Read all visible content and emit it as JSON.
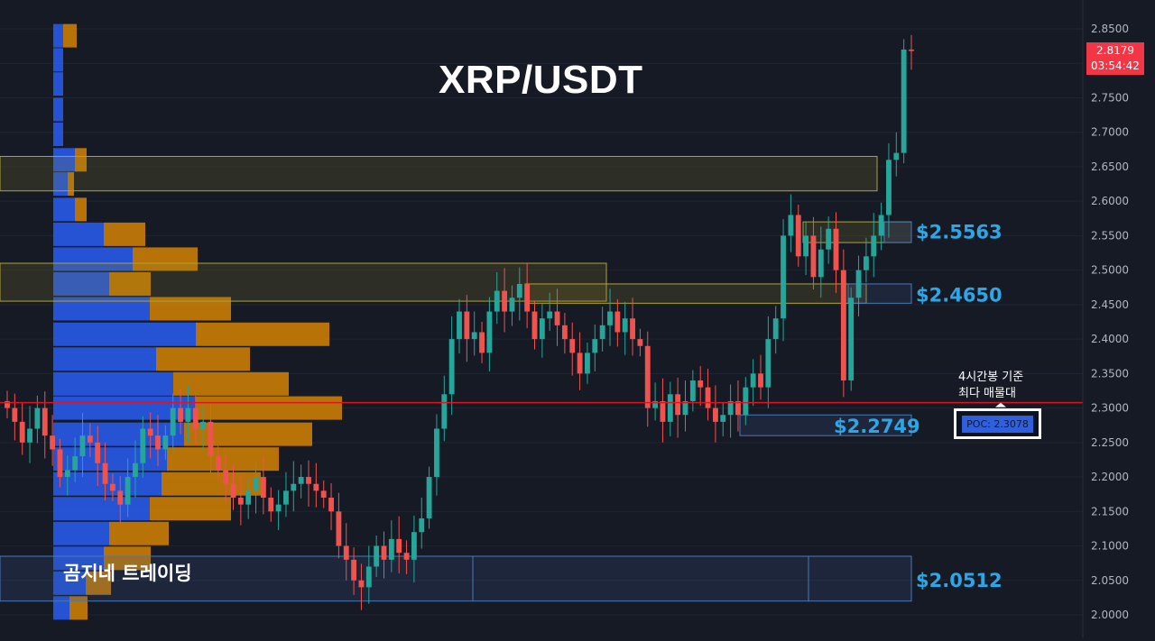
{
  "chart_data": {
    "type": "candlestick",
    "title": "XRP/USDT",
    "watermark": "곰지네 트레이딩",
    "ylim": [
      1.99,
      2.87
    ],
    "y_ticks": [
      "2.8500",
      "2.8000",
      "2.7500",
      "2.7000",
      "2.6500",
      "2.6000",
      "2.5500",
      "2.5000",
      "2.4500",
      "2.4000",
      "2.3500",
      "2.3000",
      "2.2500",
      "2.2000",
      "2.1500",
      "2.1000",
      "2.0500",
      "2.0000"
    ],
    "last_price": "2.8179",
    "countdown": "03:54:42",
    "level_labels": [
      {
        "value": 2.5563,
        "text": "$2.5563"
      },
      {
        "value": 2.465,
        "text": "$2.4650"
      },
      {
        "value": 2.2749,
        "text": "$2.2749"
      },
      {
        "value": 2.0512,
        "text": "$2.0512"
      }
    ],
    "poc_note": [
      "4시간봉 기준",
      "최다 매물대"
    ],
    "poc_label": "POC: 2.3078",
    "poc_value": 2.3078,
    "close_series": [
      2.3,
      2.28,
      2.25,
      2.27,
      2.3,
      2.26,
      2.24,
      2.2,
      2.21,
      2.23,
      2.26,
      2.25,
      2.22,
      2.19,
      2.18,
      2.16,
      2.2,
      2.22,
      2.27,
      2.26,
      2.24,
      2.26,
      2.3,
      2.28,
      2.3,
      2.27,
      2.28,
      2.23,
      2.21,
      2.19,
      2.17,
      2.16,
      2.18,
      2.2,
      2.17,
      2.15,
      2.16,
      2.18,
      2.19,
      2.2,
      2.19,
      2.18,
      2.17,
      2.15,
      2.1,
      2.08,
      2.05,
      2.04,
      2.07,
      2.1,
      2.08,
      2.11,
      2.09,
      2.08,
      2.12,
      2.14,
      2.2,
      2.27,
      2.32,
      2.4,
      2.44,
      2.4,
      2.41,
      2.38,
      2.44,
      2.47,
      2.44,
      2.46,
      2.48,
      2.44,
      2.4,
      2.43,
      2.44,
      2.42,
      2.4,
      2.38,
      2.35,
      2.38,
      2.4,
      2.42,
      2.44,
      2.41,
      2.43,
      2.4,
      2.39,
      2.3,
      2.31,
      2.28,
      2.32,
      2.29,
      2.31,
      2.34,
      2.33,
      2.3,
      2.28,
      2.29,
      2.31,
      2.29,
      2.33,
      2.35,
      2.33,
      2.4,
      2.43,
      2.55,
      2.58,
      2.52,
      2.55,
      2.49,
      2.53,
      2.56,
      2.5,
      2.34,
      2.46,
      2.5,
      2.52,
      2.55,
      2.58,
      2.66,
      2.67,
      2.82,
      2.8179
    ],
    "volume_profile": [
      {
        "price": 2.84,
        "buy": 11,
        "sell": 15
      },
      {
        "price": 2.805,
        "buy": 11,
        "sell": 0
      },
      {
        "price": 2.77,
        "buy": 11,
        "sell": 0
      },
      {
        "price": 2.733,
        "buy": 11,
        "sell": 0
      },
      {
        "price": 2.697,
        "buy": 11,
        "sell": 0
      },
      {
        "price": 2.66,
        "buy": 24,
        "sell": 13
      },
      {
        "price": 2.625,
        "buy": 16,
        "sell": 7
      },
      {
        "price": 2.588,
        "buy": 24,
        "sell": 13
      },
      {
        "price": 2.552,
        "buy": 56,
        "sell": 46
      },
      {
        "price": 2.516,
        "buy": 88,
        "sell": 72
      },
      {
        "price": 2.48,
        "buy": 62,
        "sell": 46
      },
      {
        "price": 2.444,
        "buy": 107,
        "sell": 90
      },
      {
        "price": 2.407,
        "buy": 158,
        "sell": 148
      },
      {
        "price": 2.371,
        "buy": 114,
        "sell": 104
      },
      {
        "price": 2.335,
        "buy": 133,
        "sell": 128
      },
      {
        "price": 2.3,
        "buy": 158,
        "sell": 162
      },
      {
        "price": 2.262,
        "buy": 145,
        "sell": 142
      },
      {
        "price": 2.226,
        "buy": 126,
        "sell": 124
      },
      {
        "price": 2.19,
        "buy": 120,
        "sell": 110
      },
      {
        "price": 2.154,
        "buy": 107,
        "sell": 90
      },
      {
        "price": 2.118,
        "buy": 62,
        "sell": 66
      },
      {
        "price": 2.082,
        "buy": 56,
        "sell": 52
      },
      {
        "price": 2.046,
        "buy": 36,
        "sell": 28
      },
      {
        "price": 2.01,
        "buy": 18,
        "sell": 20
      }
    ],
    "zones": [
      {
        "top": 2.665,
        "bottom": 2.615,
        "x0": 0,
        "x1": 972,
        "kind": "yellow"
      },
      {
        "top": 2.51,
        "bottom": 2.455,
        "x0": 0,
        "x1": 672,
        "kind": "yellow"
      },
      {
        "top": 2.48,
        "bottom": 2.452,
        "x0": 582,
        "x1": 960,
        "kind": "yellow"
      },
      {
        "top": 2.57,
        "bottom": 2.54,
        "x0": 890,
        "x1": 1010,
        "kind": "yellow"
      },
      {
        "top": 2.57,
        "bottom": 2.54,
        "x0": 980,
        "x1": 1010,
        "kind": "blue"
      },
      {
        "top": 2.48,
        "bottom": 2.452,
        "x0": 940,
        "x1": 1010,
        "kind": "blue"
      },
      {
        "top": 2.29,
        "bottom": 2.26,
        "x0": 820,
        "x1": 1010,
        "kind": "blue"
      },
      {
        "top": 2.085,
        "bottom": 2.02,
        "x0": 0,
        "x1": 1010,
        "kind": "blue"
      }
    ],
    "colors": {
      "background": "#161a25",
      "up": "#26a69a",
      "down": "#ef5350",
      "buy_volume": "#2962ff",
      "sell_volume": "#e08a00",
      "poc_line": "#e0141e",
      "label_blue": "#2ea6e6",
      "axis_text": "#b2b5be",
      "price_tag": "#f23645"
    }
  }
}
